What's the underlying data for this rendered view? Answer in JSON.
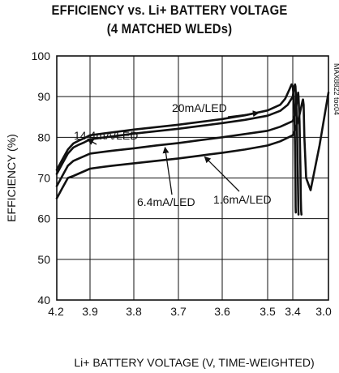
{
  "chart_data": {
    "type": "line",
    "title": "EFFICIENCY vs. Li+ BATTERY VOLTAGE",
    "subtitle": "(4 MATCHED WLEDs)",
    "xlabel": "Li+ BATTERY VOLTAGE (V, TIME-WEIGHTED)",
    "ylabel": "EFFICIENCY (%)",
    "xlim": [
      4.2,
      3.0
    ],
    "ylim": [
      40,
      100
    ],
    "x_ticks": [
      "4.2",
      "3.9",
      "3.8",
      "3.7",
      "3.6",
      "3.5",
      "3.4",
      "3.0"
    ],
    "y_ticks": [
      "40",
      "50",
      "60",
      "70",
      "80",
      "90",
      "100"
    ],
    "grid": true,
    "code_label": "MAX8822 toc04",
    "series": [
      {
        "name": "20mA/LED",
        "x": [
          4.2,
          4.15,
          4.1,
          4.05,
          4.0,
          3.95,
          3.9,
          3.85,
          3.8,
          3.75,
          3.7,
          3.65,
          3.6,
          3.55,
          3.5,
          3.45,
          3.43,
          3.415,
          3.405,
          3.4,
          3.395,
          3.385,
          3.375,
          3.37,
          3.368,
          3.366
        ],
        "y": [
          72,
          74.5,
          77,
          78.5,
          79.2,
          79.8,
          80.5,
          81.2,
          81.9,
          82.5,
          83.1,
          83.8,
          84.5,
          85.4,
          86.6,
          88.0,
          89.5,
          91.5,
          93,
          92.5,
          91,
          88,
          78,
          70,
          63,
          61.5
        ]
      },
      {
        "name": "14.4mA/LED",
        "x": [
          4.2,
          4.15,
          4.1,
          4.05,
          4.0,
          3.95,
          3.9,
          3.85,
          3.8,
          3.75,
          3.7,
          3.65,
          3.6,
          3.55,
          3.5,
          3.45,
          3.42,
          3.4,
          3.385,
          3.375,
          3.37,
          3.365,
          3.355,
          3.345,
          3.34,
          3.337,
          3.335
        ],
        "y": [
          71,
          73.5,
          76,
          77.5,
          78.2,
          78.8,
          79.5,
          80.2,
          80.9,
          81.5,
          82.1,
          82.8,
          83.5,
          84.3,
          85.3,
          86.5,
          88,
          90,
          92.5,
          93,
          92.5,
          90.5,
          85,
          74,
          66,
          62,
          61
        ]
      },
      {
        "name": "6.4mA/LED",
        "x": [
          4.2,
          4.15,
          4.1,
          4.05,
          4.0,
          3.95,
          3.9,
          3.85,
          3.8,
          3.75,
          3.7,
          3.65,
          3.6,
          3.55,
          3.5,
          3.45,
          3.4,
          3.37,
          3.355,
          3.345,
          3.34,
          3.335,
          3.325,
          3.315,
          3.31,
          3.306,
          3.303
        ],
        "y": [
          68,
          70.5,
          73,
          74.2,
          74.8,
          75.4,
          76,
          76.7,
          77.3,
          78,
          78.6,
          79.3,
          80,
          80.8,
          81.6,
          82.6,
          84,
          86,
          88.5,
          90,
          91,
          90,
          84,
          73,
          65,
          62,
          61
        ]
      },
      {
        "name": "1.6mA/LED",
        "x": [
          4.2,
          4.15,
          4.1,
          4.05,
          4.0,
          3.95,
          3.9,
          3.85,
          3.8,
          3.75,
          3.7,
          3.65,
          3.6,
          3.55,
          3.5,
          3.45,
          3.4,
          3.37,
          3.34,
          3.32,
          3.3,
          3.29,
          3.285,
          3.278,
          3.27,
          3.25,
          3.2,
          3.1,
          3.0
        ],
        "y": [
          65,
          67.5,
          70,
          70.5,
          71.1,
          71.7,
          72.3,
          73,
          73.6,
          74.2,
          74.8,
          75.5,
          76.2,
          77,
          78,
          79,
          80.5,
          82,
          84,
          86,
          88,
          89,
          89.3,
          88,
          80,
          70,
          67,
          78,
          91
        ]
      }
    ],
    "annotations": [
      {
        "text": "20mA/LED",
        "target_x": 3.52,
        "target_y": 86
      },
      {
        "text": "14.4mA/LED",
        "target_x": 3.92,
        "target_y": 79.5
      },
      {
        "text": "6.4mA/LED",
        "target_x": 3.73,
        "target_y": 77.5
      },
      {
        "text": "1.6mA/LED",
        "target_x": 3.64,
        "target_y": 75.2
      }
    ]
  }
}
